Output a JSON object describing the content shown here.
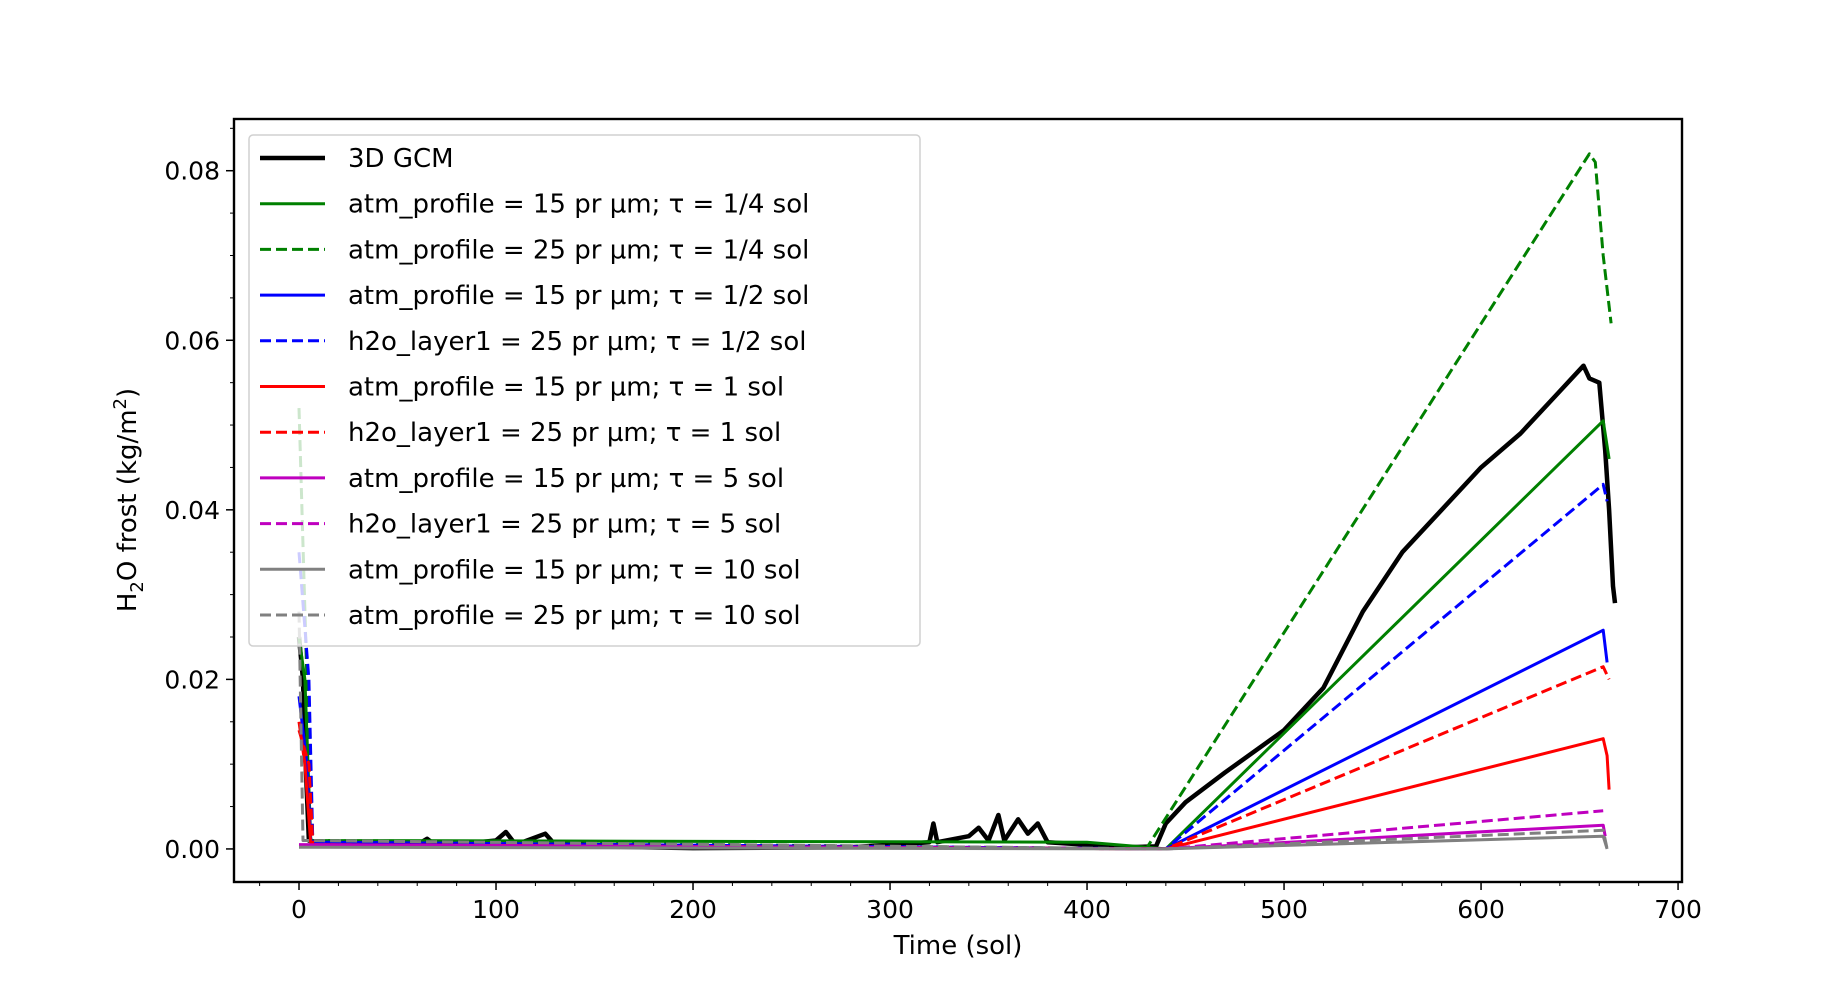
{
  "chart_data": {
    "type": "line",
    "title": "",
    "xlabel": "Time (sol)",
    "ylabel_main": "H",
    "ylabel_sub": "2",
    "ylabel_rest": "O frost (kg/m",
    "ylabel_sup": "2",
    "ylabel_end": ")",
    "xlim": [
      -33,
      702
    ],
    "ylim": [
      -0.0039,
      0.0861
    ],
    "xticks": [
      0,
      100,
      200,
      300,
      400,
      500,
      600,
      700
    ],
    "xtick_labels": [
      "0",
      "100",
      "200",
      "300",
      "400",
      "500",
      "600",
      "700"
    ],
    "yticks": [
      0,
      0.02,
      0.04,
      0.06,
      0.08
    ],
    "ytick_labels": [
      "0.00",
      "0.02",
      "0.04",
      "0.06",
      "0.08"
    ],
    "grid": false,
    "legend_placement": "top-left",
    "series": [
      {
        "name": "3D GCM",
        "color": "#000000",
        "style": "solid",
        "width": 4.5,
        "points": [
          [
            0,
            0.025
          ],
          [
            2,
            0.02
          ],
          [
            3,
            0.012
          ],
          [
            5,
            0.001
          ],
          [
            10,
            0.0008
          ],
          [
            60,
            0.0005
          ],
          [
            65,
            0.0012
          ],
          [
            70,
            0.0003
          ],
          [
            100,
            0.001
          ],
          [
            105,
            0.002
          ],
          [
            110,
            0.0005
          ],
          [
            125,
            0.0018
          ],
          [
            130,
            0.0005
          ],
          [
            145,
            0.0008
          ],
          [
            150,
            0.0003
          ],
          [
            200,
            0.0001
          ],
          [
            280,
            0.0002
          ],
          [
            300,
            0.0005
          ],
          [
            320,
            0.0008
          ],
          [
            322,
            0.003
          ],
          [
            324,
            0.0008
          ],
          [
            340,
            0.0015
          ],
          [
            345,
            0.0025
          ],
          [
            350,
            0.001
          ],
          [
            355,
            0.004
          ],
          [
            358,
            0.001
          ],
          [
            365,
            0.0035
          ],
          [
            370,
            0.0018
          ],
          [
            375,
            0.003
          ],
          [
            380,
            0.0008
          ],
          [
            420,
            0.0002
          ],
          [
            435,
            0.0003
          ],
          [
            440,
            0.003
          ],
          [
            450,
            0.0055
          ],
          [
            470,
            0.009
          ],
          [
            500,
            0.014
          ],
          [
            520,
            0.019
          ],
          [
            540,
            0.028
          ],
          [
            560,
            0.035
          ],
          [
            580,
            0.04
          ],
          [
            600,
            0.045
          ],
          [
            620,
            0.049
          ],
          [
            640,
            0.054
          ],
          [
            652,
            0.057
          ],
          [
            655,
            0.0555
          ],
          [
            660,
            0.055
          ],
          [
            663,
            0.047
          ],
          [
            665,
            0.04
          ],
          [
            667,
            0.031
          ],
          [
            668,
            0.029
          ]
        ]
      },
      {
        "name": "atm_profile = 15 pr µm; τ = 1/4 sol",
        "color": "#008000",
        "style": "solid",
        "width": 3,
        "points": [
          [
            0,
            0.025
          ],
          [
            3,
            0.02
          ],
          [
            6,
            0.001
          ],
          [
            400,
            0.0008
          ],
          [
            440,
            0
          ],
          [
            662,
            0.0505
          ],
          [
            665,
            0.046
          ]
        ]
      },
      {
        "name": "atm_profile = 25 pr µm; τ  = 1/4 sol",
        "color": "#008000",
        "style": "dashed",
        "width": 3,
        "points": [
          [
            0,
            0.052
          ],
          [
            4,
            0.02
          ],
          [
            7,
            0.001
          ],
          [
            430,
            0
          ],
          [
            655,
            0.082
          ],
          [
            658,
            0.081
          ],
          [
            662,
            0.07
          ],
          [
            666,
            0.062
          ]
        ]
      },
      {
        "name": "atm_profile = 15 pr µm; τ  = 1/2 sol",
        "color": "#0000ff",
        "style": "solid",
        "width": 3,
        "points": [
          [
            0,
            0.018
          ],
          [
            4,
            0.01
          ],
          [
            6,
            0.0008
          ],
          [
            440,
            0
          ],
          [
            662,
            0.0258
          ],
          [
            664,
            0.022
          ]
        ]
      },
      {
        "name": "h2o_layer1 = 25 pr µm; τ = 1/2 sol",
        "color": "#0000ff",
        "style": "dashed",
        "width": 3,
        "points": [
          [
            0,
            0.035
          ],
          [
            5,
            0.02
          ],
          [
            7,
            0.0008
          ],
          [
            440,
            0
          ],
          [
            662,
            0.043
          ],
          [
            664,
            0.041
          ]
        ]
      },
      {
        "name": "atm_profile = 15 pr µm; τ = 1 sol",
        "color": "#ff0000",
        "style": "solid",
        "width": 3,
        "points": [
          [
            0,
            0.015
          ],
          [
            3,
            0.01
          ],
          [
            6,
            0.0005
          ],
          [
            440,
            0
          ],
          [
            662,
            0.013
          ],
          [
            664,
            0.011
          ],
          [
            665,
            0.007
          ]
        ]
      },
      {
        "name": "h2o_layer1 = 25 pr µm; τ = 1 sol",
        "color": "#ff0000",
        "style": "dashed",
        "width": 3,
        "points": [
          [
            0,
            0.014
          ],
          [
            5,
            0.01
          ],
          [
            7,
            0.0005
          ],
          [
            440,
            0
          ],
          [
            662,
            0.0215
          ],
          [
            665,
            0.02
          ]
        ]
      },
      {
        "name": "atm_profile = 15 pr µm; τ = 5 sol",
        "color": "#bf00bf",
        "style": "solid",
        "width": 3,
        "points": [
          [
            0,
            0.0005
          ],
          [
            440,
            0
          ],
          [
            662,
            0.0028
          ],
          [
            663,
            0.0015
          ]
        ]
      },
      {
        "name": "h2o_layer1 = 25 pr µm; τ = 5 sol",
        "color": "#bf00bf",
        "style": "dashed",
        "width": 3,
        "points": [
          [
            0,
            0.0005
          ],
          [
            440,
            0
          ],
          [
            662,
            0.0045
          ]
        ]
      },
      {
        "name": "atm_profile = 15 pr µm; τ = 10 sol",
        "color": "#808080",
        "style": "solid",
        "width": 3,
        "points": [
          [
            0,
            0.0002
          ],
          [
            440,
            0
          ],
          [
            662,
            0.0015
          ],
          [
            664,
            0
          ]
        ]
      },
      {
        "name": "atm_profile = 25 pr µm; τ = 10 sol",
        "color": "#808080",
        "style": "dashed",
        "width": 3,
        "points": [
          [
            0,
            0.028
          ],
          [
            2,
            0.001
          ],
          [
            440,
            0
          ],
          [
            662,
            0.0022
          ],
          [
            664,
            0
          ]
        ]
      }
    ]
  }
}
